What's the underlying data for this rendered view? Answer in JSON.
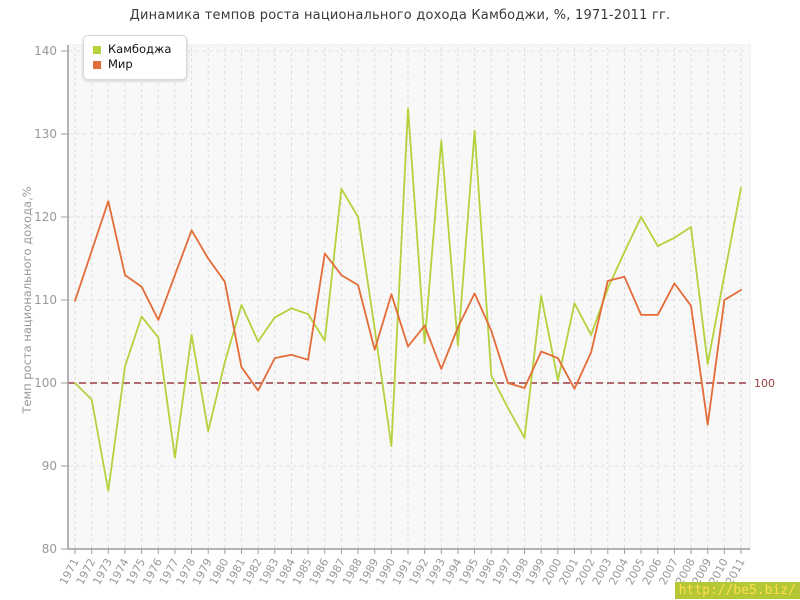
{
  "title": "Динамика темпов роста национального дохода Камбоджи, %, 1971-2011 гг.",
  "watermark": "http://be5.biz/",
  "chart_data": {
    "type": "line",
    "title": "Динамика темпов роста национального дохода Камбоджи, %, 1971-2011 гг.",
    "xlabel": "",
    "ylabel": "Темп роста национального дохода,%",
    "ylim": [
      80,
      140
    ],
    "yticks": [
      80,
      90,
      100,
      110,
      120,
      130,
      140
    ],
    "grid": true,
    "legend_position": "top-left",
    "reference_line": {
      "value": 100,
      "label": "100",
      "color": "#9a3e44"
    },
    "categories": [
      1971,
      1972,
      1973,
      1974,
      1975,
      1976,
      1977,
      1978,
      1979,
      1980,
      1981,
      1982,
      1983,
      1984,
      1985,
      1986,
      1987,
      1988,
      1989,
      1990,
      1991,
      1992,
      1993,
      1994,
      1995,
      1996,
      1997,
      1998,
      1999,
      2000,
      2001,
      2002,
      2003,
      2004,
      2005,
      2006,
      2007,
      2008,
      2009,
      2010,
      2011
    ],
    "series": [
      {
        "name": "Камбоджа",
        "slug": "cambodia",
        "color": "#b3d23c",
        "values": [
          100,
          98,
          87,
          102,
          108,
          105.5,
          91,
          105.8,
          94.2,
          102.5,
          109.4,
          105,
          107.9,
          109,
          108.3,
          105.1,
          123.4,
          120,
          106.5,
          92.4,
          133.1,
          104.8,
          129.2,
          104.5,
          130.4,
          100.9,
          97,
          93.4,
          110.5,
          100.3,
          109.6,
          105.8,
          111.4,
          115.8,
          120,
          116.5,
          117.5,
          118.8,
          102.3,
          113,
          123.5
        ]
      },
      {
        "name": "Мир",
        "slug": "world",
        "color": "#e36c38",
        "values": [
          109.9,
          115.9,
          121.9,
          113,
          111.6,
          107.6,
          113,
          118.4,
          115,
          112.2,
          101.9,
          99.1,
          103,
          103.4,
          102.8,
          115.6,
          113,
          111.8,
          104,
          110.7,
          104.4,
          106.9,
          101.7,
          106.7,
          110.8,
          106.3,
          100,
          99.4,
          103.8,
          103,
          99.3,
          103.7,
          112.3,
          112.8,
          108.2,
          108.2,
          112,
          109.3,
          95,
          110,
          111.2
        ]
      }
    ]
  },
  "colors": {
    "plot_background": "#f8f8f8",
    "grid": "#dddddd",
    "axis": "#9c9c9c",
    "tick_label": "#999999",
    "reference": "#9a3e44",
    "watermark_bg": "#b5c734",
    "watermark_text": "#ffdf4d"
  }
}
